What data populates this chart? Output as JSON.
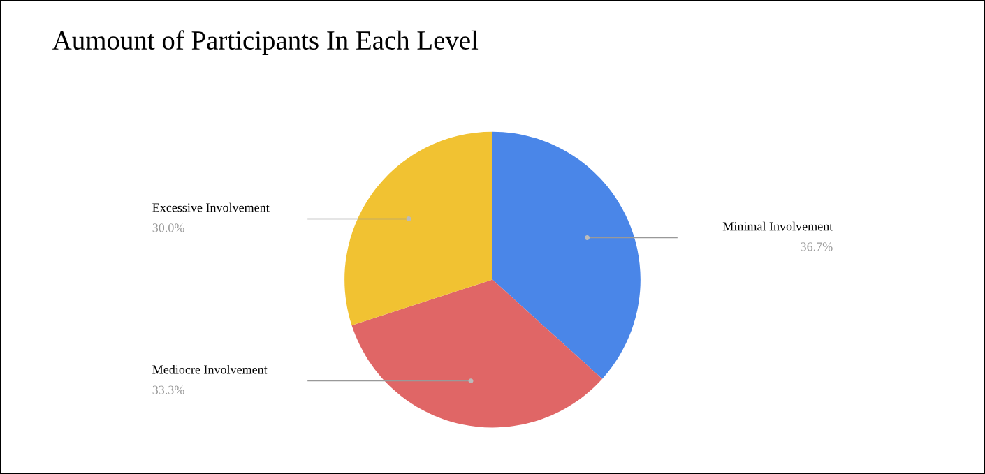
{
  "chart_data": {
    "type": "pie",
    "title": "Aumount of Participants In Each Level",
    "categories": [
      "Minimal Involvement",
      "Mediocre Involvement",
      "Excessive Involvement"
    ],
    "values": [
      36.7,
      33.3,
      30.0
    ],
    "colors": [
      "#4a86e8",
      "#e06666",
      "#f1c232"
    ],
    "value_labels": [
      "36.7%",
      "33.3%",
      "30.0%"
    ]
  }
}
